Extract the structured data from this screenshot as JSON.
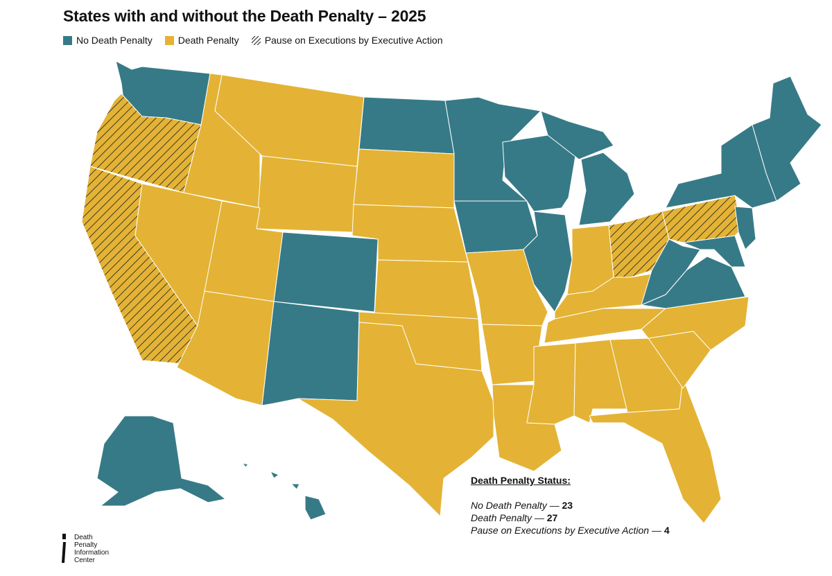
{
  "header": {
    "title": "States with and without the Death Penalty – 2025"
  },
  "legend": {
    "items": [
      {
        "label": "No Death Penalty",
        "color": "#377a87",
        "pattern": "solid"
      },
      {
        "label": "Death Penalty",
        "color": "#e4b335",
        "pattern": "solid"
      },
      {
        "label": "Pause on Executions by Executive Action",
        "color": "#e4b335",
        "pattern": "hatched"
      }
    ]
  },
  "colors": {
    "no_death_penalty": "#377a87",
    "death_penalty": "#e4b335",
    "hatch": "#3a3a2a",
    "border": "#ffffff"
  },
  "states": [
    {
      "name": "Washington",
      "status": "no_death_penalty"
    },
    {
      "name": "Oregon",
      "status": "pause"
    },
    {
      "name": "California",
      "status": "pause"
    },
    {
      "name": "Nevada",
      "status": "death_penalty"
    },
    {
      "name": "Idaho",
      "status": "death_penalty"
    },
    {
      "name": "Montana",
      "status": "death_penalty"
    },
    {
      "name": "Wyoming",
      "status": "death_penalty"
    },
    {
      "name": "Utah",
      "status": "death_penalty"
    },
    {
      "name": "Arizona",
      "status": "death_penalty"
    },
    {
      "name": "Colorado",
      "status": "no_death_penalty"
    },
    {
      "name": "New Mexico",
      "status": "no_death_penalty"
    },
    {
      "name": "North Dakota",
      "status": "no_death_penalty"
    },
    {
      "name": "South Dakota",
      "status": "death_penalty"
    },
    {
      "name": "Nebraska",
      "status": "death_penalty"
    },
    {
      "name": "Kansas",
      "status": "death_penalty"
    },
    {
      "name": "Oklahoma",
      "status": "death_penalty"
    },
    {
      "name": "Texas",
      "status": "death_penalty"
    },
    {
      "name": "Minnesota",
      "status": "no_death_penalty"
    },
    {
      "name": "Iowa",
      "status": "no_death_penalty"
    },
    {
      "name": "Missouri",
      "status": "death_penalty"
    },
    {
      "name": "Arkansas",
      "status": "death_penalty"
    },
    {
      "name": "Louisiana",
      "status": "death_penalty"
    },
    {
      "name": "Wisconsin",
      "status": "no_death_penalty"
    },
    {
      "name": "Illinois",
      "status": "no_death_penalty"
    },
    {
      "name": "Michigan",
      "status": "no_death_penalty"
    },
    {
      "name": "Indiana",
      "status": "death_penalty"
    },
    {
      "name": "Ohio",
      "status": "pause"
    },
    {
      "name": "Kentucky",
      "status": "death_penalty"
    },
    {
      "name": "Tennessee",
      "status": "death_penalty"
    },
    {
      "name": "Mississippi",
      "status": "death_penalty"
    },
    {
      "name": "Alabama",
      "status": "death_penalty"
    },
    {
      "name": "Georgia",
      "status": "death_penalty"
    },
    {
      "name": "Florida",
      "status": "death_penalty"
    },
    {
      "name": "South Carolina",
      "status": "death_penalty"
    },
    {
      "name": "North Carolina",
      "status": "death_penalty"
    },
    {
      "name": "Virginia",
      "status": "no_death_penalty"
    },
    {
      "name": "West Virginia",
      "status": "no_death_penalty"
    },
    {
      "name": "Pennsylvania",
      "status": "pause"
    },
    {
      "name": "New York",
      "status": "no_death_penalty"
    },
    {
      "name": "Maine",
      "status": "no_death_penalty"
    },
    {
      "name": "Alaska",
      "status": "no_death_penalty"
    },
    {
      "name": "Hawaii",
      "status": "no_death_penalty"
    }
  ],
  "stats": {
    "heading": "Death Penalty Status:",
    "rows": [
      {
        "label": "No Death Penalty — ",
        "value": "23"
      },
      {
        "label": "Death Penalty — ",
        "value": "27"
      },
      {
        "label": "Pause on Executions by Executive Action — ",
        "value": "4"
      }
    ]
  },
  "logo": {
    "lines": [
      "Death",
      "Penalty",
      "Information",
      "Center"
    ]
  }
}
